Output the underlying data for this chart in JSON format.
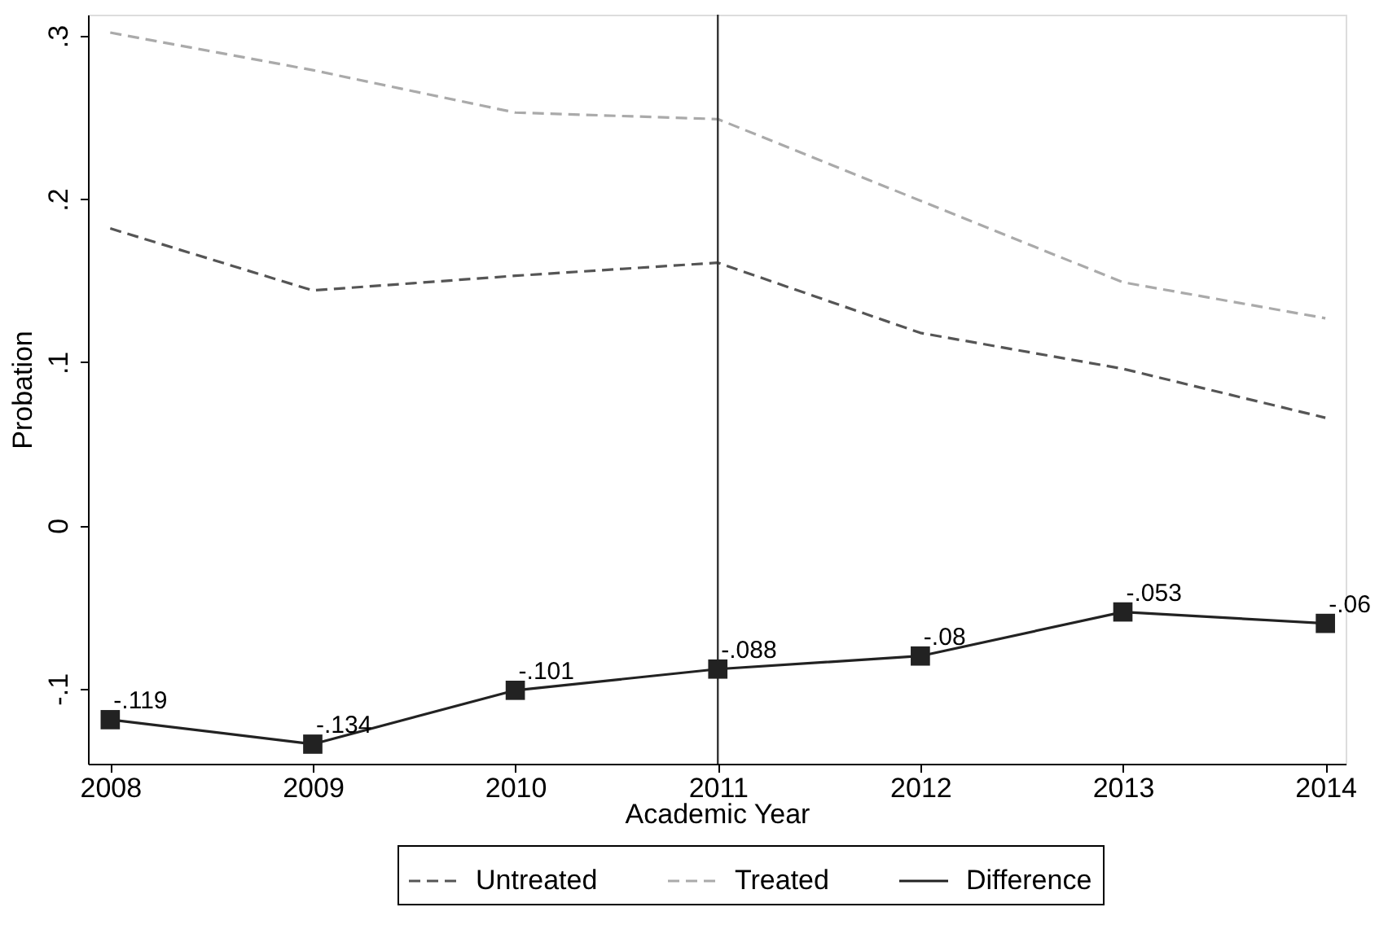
{
  "chart_data": {
    "type": "line",
    "xlabel": "Academic Year",
    "ylabel": "Probation",
    "x": [
      2008,
      2009,
      2010,
      2011,
      2012,
      2013,
      2014
    ],
    "series": [
      {
        "name": "Untreated",
        "color": "#555555",
        "line_style": "dashed",
        "marker": "none",
        "values": [
          0.182,
          0.144,
          0.153,
          0.161,
          0.118,
          0.096,
          0.066
        ]
      },
      {
        "name": "Treated",
        "color": "#aaaaaa",
        "line_style": "dashed",
        "marker": "none",
        "values": [
          0.302,
          0.279,
          0.253,
          0.249,
          0.199,
          0.149,
          0.127
        ]
      },
      {
        "name": "Difference",
        "color": "#222222",
        "line_style": "solid",
        "marker": "square",
        "values": [
          -0.119,
          -0.134,
          -0.101,
          -0.088,
          -0.08,
          -0.053,
          -0.06
        ],
        "value_labels": [
          "-.119",
          "-.134",
          "-.101",
          "-.088",
          "-.08",
          "-.053",
          "-.06"
        ]
      }
    ],
    "xlim": [
      2007.89,
      2014.1
    ],
    "xticks": [
      2008,
      2009,
      2010,
      2011,
      2012,
      2013,
      2014
    ],
    "ylim": [
      -0.146,
      0.313
    ],
    "yticks": [
      {
        "value": -0.1,
        "label": "-.1"
      },
      {
        "value": 0,
        "label": "0"
      },
      {
        "value": 0.1,
        "label": ".1"
      },
      {
        "value": 0.2,
        "label": ".2"
      },
      {
        "value": 0.3,
        "label": ".3"
      }
    ],
    "ref_lines": [
      {
        "axis": "x",
        "value": 2011,
        "color": "#333333"
      }
    ],
    "grid": false,
    "legend": "bottom"
  }
}
